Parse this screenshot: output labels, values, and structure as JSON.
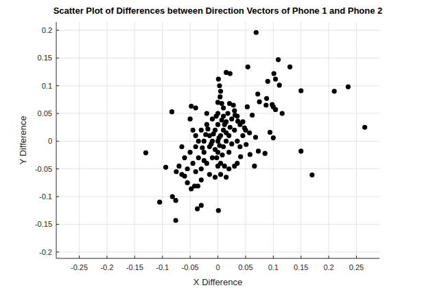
{
  "chart_data": {
    "type": "scatter",
    "title": "Scatter Plot of Differences between Direction Vectors of Phone 1 and Phone 2",
    "x_label": "X Difference",
    "y_label": "Y Difference",
    "color": "#000000",
    "marker": "circle",
    "grid": true,
    "xlim": [
      -0.2915,
      0.2915
    ],
    "ylim": [
      -0.2115,
      0.215
    ],
    "xticks": [
      -0.25,
      -0.2,
      -0.15,
      -0.1,
      -0.05,
      0,
      0.05,
      0.1,
      0.15,
      0.2,
      0.25
    ],
    "yticks": [
      -0.2,
      -0.15,
      -0.1,
      -0.05,
      0,
      0.05,
      0.1,
      0.15,
      0.2
    ],
    "x": [
      0.069,
      0.109,
      0.13,
      0.054,
      0.015,
      0.022,
      0.101,
      0.104,
      0.09,
      0.111,
      0.001,
      0.003,
      0.15,
      0.21,
      0.235,
      0.265,
      0.15,
      0.17,
      -0.13,
      -0.094,
      -0.105,
      -0.082,
      -0.076,
      -0.076,
      -0.048,
      -0.037,
      -0.03,
      -0.06,
      -0.042,
      -0.036,
      0.001,
      -0.083,
      -0.048,
      0.116,
      0.094,
      0.1,
      0.104,
      0.098,
      0.088,
      0.072,
      0.075,
      0.053,
      0.062,
      0.087,
      0.1,
      0.068,
      0.073,
      0.085,
      0.058,
      0.066,
      0.041,
      0.051,
      0.057,
      0.048,
      0.036,
      0.031,
      0.021,
      0.007,
      0.004,
      -0.06,
      -0.055,
      -0.05,
      -0.045,
      -0.04,
      -0.04,
      -0.035,
      -0.03,
      -0.03,
      -0.025,
      -0.025,
      -0.02,
      -0.02,
      -0.015,
      -0.015,
      -0.01,
      -0.01,
      -0.01,
      -0.005,
      -0.005,
      0.0,
      0.0,
      0.0,
      0.0,
      0.005,
      0.005,
      0.01,
      0.01,
      0.01,
      0.015,
      0.015,
      0.02,
      0.02,
      0.025,
      0.025,
      0.03,
      0.03,
      0.035,
      0.035,
      0.04,
      0.045,
      -0.065,
      -0.07,
      -0.075,
      -0.065,
      -0.045,
      -0.05,
      -0.04,
      -0.02,
      -0.015,
      -0.005,
      0.005,
      0.015,
      0.02,
      0.03,
      -0.035,
      -0.055,
      -0.03,
      0.0,
      0.0,
      0.005,
      0.01,
      -0.008,
      0.008,
      0.012,
      -0.012,
      0.018,
      0.022,
      -0.022,
      -0.028,
      0.028,
      0.04,
      0.045,
      0.05,
      -0.018,
      0.002,
      0.003,
      -0.003,
      0.007,
      0.012,
      -0.04,
      -0.025,
      0.035,
      0.015,
      -0.002
    ],
    "values": [
      0.196,
      0.147,
      0.134,
      0.134,
      0.124,
      0.122,
      0.122,
      0.112,
      0.108,
      0.101,
      0.112,
      0.1,
      0.091,
      0.09,
      0.098,
      0.025,
      -0.018,
      -0.061,
      -0.021,
      -0.047,
      -0.11,
      -0.1,
      -0.107,
      -0.143,
      -0.086,
      -0.122,
      -0.116,
      -0.063,
      -0.081,
      -0.081,
      -0.125,
      0.053,
      0.063,
      0.05,
      0.016,
      0.062,
      0.057,
      0.066,
      0.077,
      0.085,
      0.071,
      0.062,
      0.047,
      0.065,
      0.006,
      0.007,
      -0.018,
      -0.022,
      -0.024,
      -0.045,
      -0.028,
      -0.006,
      0.015,
      0.024,
      0.036,
      0.047,
      0.068,
      0.068,
      0.08,
      -0.03,
      -0.05,
      -0.02,
      -0.04,
      -0.01,
      0.01,
      -0.03,
      0.02,
      -0.05,
      0.0,
      -0.02,
      0.03,
      -0.04,
      0.01,
      -0.01,
      0.04,
      -0.03,
      0.0,
      0.02,
      -0.015,
      0.0,
      0.03,
      -0.02,
      0.05,
      0.01,
      -0.04,
      0.02,
      -0.01,
      0.06,
      0.0,
      0.035,
      -0.02,
      0.01,
      0.04,
      -0.005,
      0.02,
      0.055,
      -0.04,
      0.0,
      0.03,
      0.01,
      -0.01,
      -0.045,
      -0.055,
      -0.06,
      0.02,
      0.04,
      0.06,
      0.05,
      -0.06,
      -0.065,
      -0.06,
      -0.065,
      -0.05,
      -0.045,
      0.0,
      -0.075,
      -0.07,
      -0.045,
      0.07,
      0.09,
      0.045,
      0.013,
      -0.025,
      0.03,
      -0.005,
      0.05,
      0.025,
      0.012,
      -0.012,
      0.065,
      -0.01,
      0.035,
      0.02,
      0.022,
      0.006,
      -0.008,
      0.045,
      0.038,
      -0.045,
      -0.055,
      -0.035,
      0.045,
      0.015,
      -0.03
    ]
  }
}
